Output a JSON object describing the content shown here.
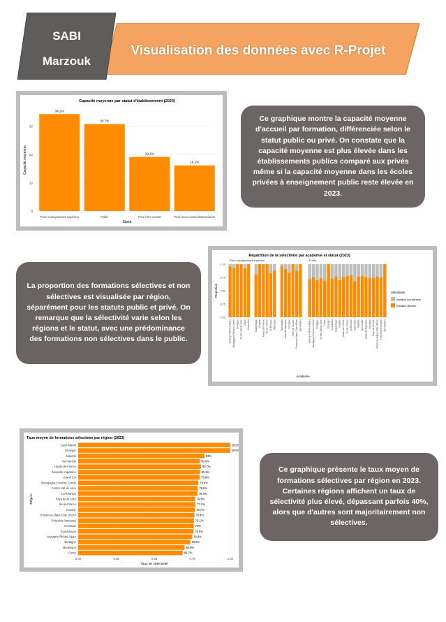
{
  "header": {
    "authors": [
      "SABI",
      "Marzouk"
    ],
    "title": "Visualisation des données avec R-Projet"
  },
  "texts": {
    "chart1_desc": "Ce graphique montre la capacité moyenne d'accueil par formation, différenciée selon le statut public ou privé. On constate que la capacité moyenne est plus élevée dans les établissements publics comparé aux privés même si la capacité moyenne dans les écoles privées à enseignement public reste élevée en 2023.",
    "chart2_desc": "La proportion des formations sélectives et non sélectives est visualisée par région, séparément pour les statuts public et privé. On remarque que la sélectivité varie selon les régions et le statut, avec une prédominance des formations non sélectives dans le public.",
    "chart3_desc": "Ce graphique présente le taux moyen de formations sélectives par région en 2023. Certaines régions affichent un taux de sélectivité plus élevé, dépassant parfois 40%, alors que d'autres sont majoritairement non sélectives."
  },
  "colors": {
    "orange": "#ff8c00",
    "gray": "#bebebe",
    "bubble": "#6d6565",
    "header_orange": "#f4a460"
  },
  "chart_data": [
    {
      "type": "bar",
      "title": "Capacité moyenne par statut d'établissement (2023)",
      "xlabel": "Statut",
      "ylabel": "Capacité moyenne",
      "categories": [
        "Privé enseignement supérieur",
        "Public",
        "Privé hors contrat",
        "Privé sous contrat d'association"
      ],
      "values": [
        34.2,
        30.7,
        19.1,
        16.1
      ],
      "value_labels": [
        "34.2%",
        "30.7%",
        "19.1%",
        "16.1%"
      ],
      "yticks": [
        0,
        10,
        20,
        30
      ],
      "ylim": [
        0,
        36
      ],
      "grid": true
    },
    {
      "type": "bar",
      "stacked": true,
      "title": "Répartition de la sélectivité par académie et statut (2023)",
      "xlabel": "Académie",
      "ylabel": "Proportion",
      "yticks": [
        "0.00",
        "0.25",
        "0.50",
        "0.75",
        "1.00"
      ],
      "legend": {
        "title": "Sélectivité",
        "entries": [
          "formation non sélective",
          "formation sélective"
        ],
        "position": "right"
      },
      "panels": [
        {
          "name": "Privé enseignement supérieur",
          "categories": [
            "Auvergne-Rhône-Alpes",
            "Bourgogne-Franche-Comté",
            "Bretagne",
            "Centre-Val de Loire",
            "Corse",
            "Grand Est",
            "",
            "Guadeloupe",
            "Guyane",
            "Hauts-de-France",
            "Île-de-France",
            "La Réunion",
            "Martinique",
            "",
            "Normandie",
            "Nouvelle-Aquitaine",
            "Occitanie",
            "Pays de la Loire",
            "Provence-Alpes-Côte d'Azur",
            "Saint-Martin"
          ],
          "selective": [
            0.96,
            0.93,
            1.0,
            1.0,
            0.92,
            1.0,
            null,
            0.81,
            1.0,
            1.0,
            1.0,
            0.83,
            0.88,
            null,
            0.97,
            0.91,
            0.84,
            1.0,
            0.88,
            1.0
          ]
        },
        {
          "name": "Public",
          "categories": [
            "Auvergne-Rhône-Alpes",
            "Bourgogne-Franche-Comté",
            "Bretagne",
            "Centre-Val de Loire",
            "Corse",
            "Étranger",
            "Grand Est",
            "Guadeloupe",
            "Guyane",
            "Hauts-de-France",
            "Île-de-France",
            "La Réunion",
            "Martinique",
            "Mayotte",
            "Normandie",
            "Nouvelle-Aquitaine",
            "Occitanie",
            "Pays de la Loire",
            "Provence-Alpes-Côte d'Azur",
            "Polynésie française",
            "Saint-Martin"
          ],
          "selective": [
            0.72,
            0.76,
            0.7,
            0.74,
            0.69,
            1.0,
            0.73,
            0.77,
            0.7,
            0.76,
            0.78,
            0.79,
            0.68,
            0.77,
            0.78,
            0.76,
            0.74,
            0.74,
            0.77,
            0.75,
            1.0
          ]
        }
      ]
    },
    {
      "type": "bar",
      "orientation": "horizontal",
      "title": "Taux moyen de formations sélectives par région (2023)",
      "xlabel": "Taux de sélectivité",
      "ylabel": "Région",
      "xticks": [
        "0.00",
        "0.25",
        "0.50",
        "0.75",
        "1.00"
      ],
      "xlim": [
        0,
        1.0
      ],
      "categories": [
        "Saint-Martin",
        "Étranger",
        "Mayotte",
        "Normandie",
        "Hauts-de-France",
        "Nouvelle-Aquitaine",
        "Grand Est",
        "Bourgogne-Franche-Comté",
        "Centre-Val de Loire",
        "La Réunion",
        "Pays de la Loire",
        "Île-de-France",
        "Guyane",
        "Provence-Alpes-Côte d'Azur",
        "Polynésie française",
        "Occitanie",
        "Guadeloupe",
        "Auvergne-Rhône-Alpes",
        "Bretagne",
        "Martinique",
        "Corse"
      ],
      "values": [
        1.0,
        1.0,
        0.83,
        0.8,
        0.807,
        0.801,
        0.799,
        0.79,
        0.786,
        0.784,
        0.769,
        0.771,
        0.767,
        0.764,
        0.761,
        0.76,
        0.758,
        0.749,
        0.736,
        0.699,
        0.687
      ],
      "value_labels": [
        "100%",
        "100%",
        "83%",
        "80.0%",
        "80.7%",
        "80.1%",
        "79.9%",
        "79.0%",
        "78.6%",
        "78.4%",
        "76.9%",
        "77.1%",
        "76.7%",
        "76.4%",
        "76.1%",
        "76%",
        "75.8%",
        "74.9%",
        "73.6%",
        "69.9%",
        "68.7%"
      ]
    }
  ]
}
